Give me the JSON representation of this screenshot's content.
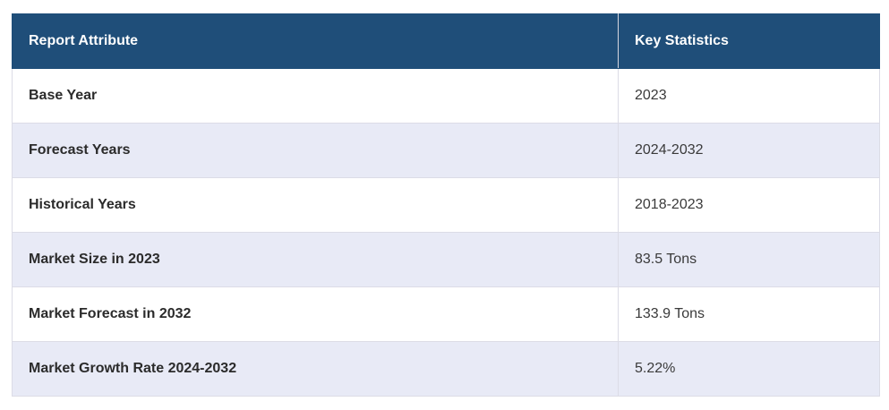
{
  "table": {
    "headers": [
      "Report Attribute",
      "Key Statistics"
    ],
    "rows": [
      {
        "attribute": "Base Year",
        "value": "2023"
      },
      {
        "attribute": "Forecast Years",
        "value": "2024-2032"
      },
      {
        "attribute": "Historical Years",
        "value": "2018-2023"
      },
      {
        "attribute": "Market Size in 2023",
        "value": "83.5 Tons"
      },
      {
        "attribute": "Market Forecast in 2032",
        "value": "133.9 Tons"
      },
      {
        "attribute": "Market Growth Rate 2024-2032",
        "value": "5.22%"
      }
    ],
    "colors": {
      "header_bg": "#1f4e79",
      "header_text": "#ffffff",
      "row_alt_bg": "#e8eaf6"
    }
  }
}
